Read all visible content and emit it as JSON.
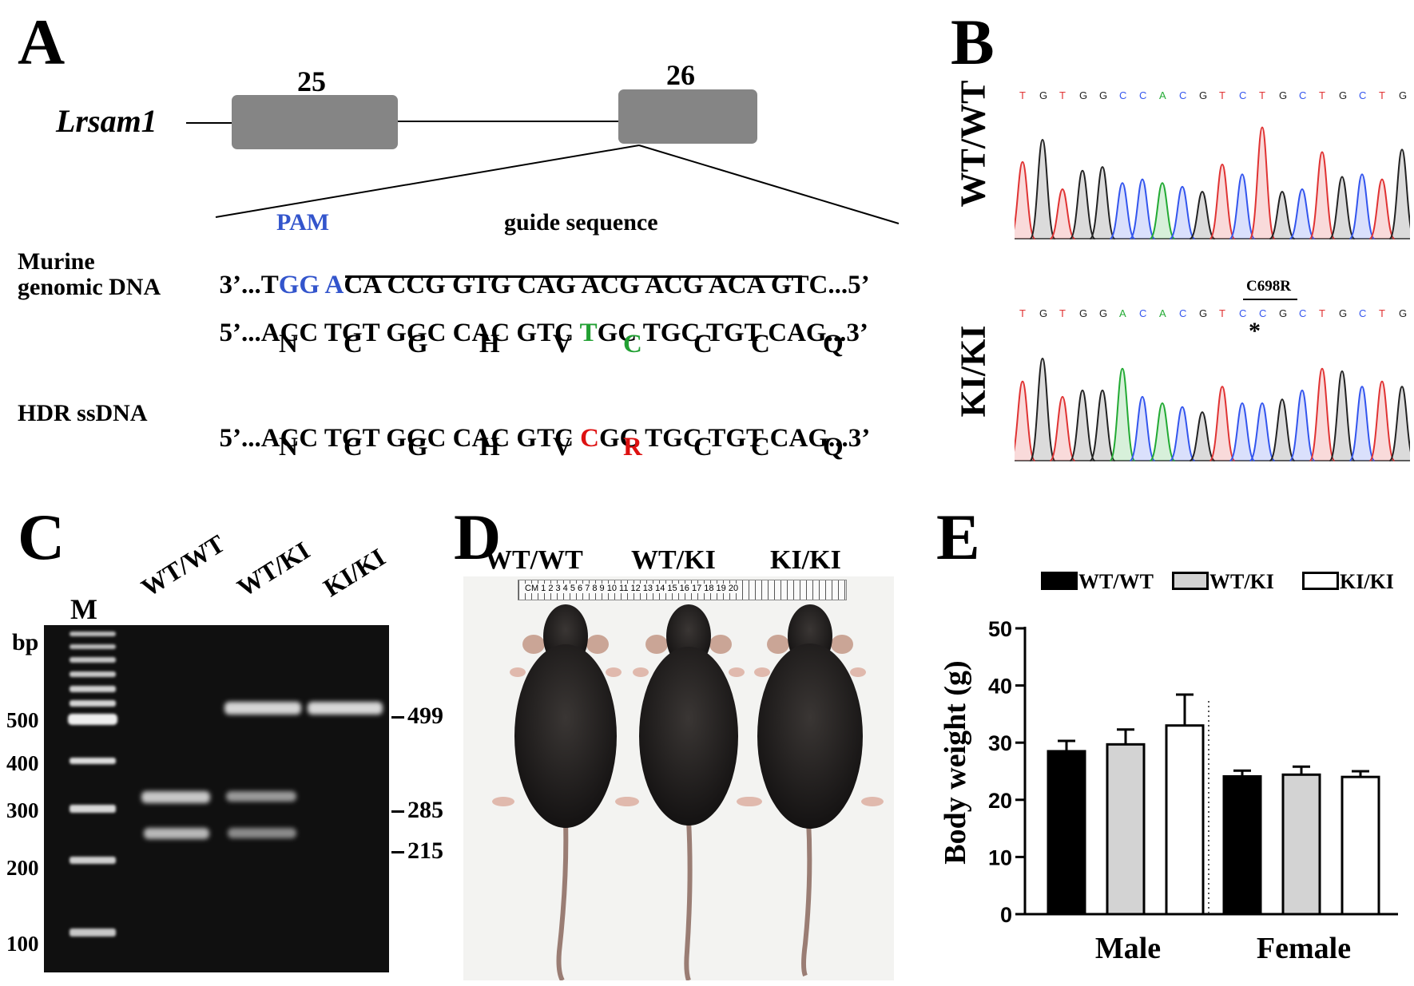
{
  "panels": {
    "a": "A",
    "b": "B",
    "c": "C",
    "d": "D",
    "e": "E"
  },
  "colors": {
    "blue": "#3355cc",
    "green": "#22a033",
    "red": "#dd1111",
    "exon": "#858585",
    "bar_gray": "#d3d3d3"
  },
  "panel_a": {
    "gene": "Lrsam1",
    "exon_left": "25",
    "exon_right": "26",
    "pam": "PAM",
    "guide_label": "guide sequence",
    "murine_label_line1": "Murine",
    "murine_label_line2": "genomic DNA",
    "hdr_label": "HDR ssDNA",
    "rev_strand": {
      "prefix": "3’...T",
      "pam_gg": "GG",
      "space": " ",
      "pam_a": "A",
      "rest": "CA CCG GTG CAG ACG ACG ACA GTC...5’"
    },
    "fwd_strand": {
      "before": "5’...ACC TGT GGC CAC GTC ",
      "mut": "T",
      "after": "GC TGC TGT CAG...3’"
    },
    "fwd_aa": [
      "N",
      "C",
      "G",
      "H",
      "V",
      "C",
      "C",
      "C",
      "Q"
    ],
    "hdr_strand": {
      "before": "5’...ACC TGT GGC CAC GTC ",
      "mut": "C",
      "after": "GC TGC TGT CAG...3’"
    },
    "hdr_aa": [
      "N",
      "C",
      "G",
      "H",
      "V",
      "R",
      "C",
      "C",
      "Q"
    ]
  },
  "panel_b": {
    "wt_label": "WT/WT",
    "ki_label": "KI/KI",
    "wt_seq": [
      "T",
      "G",
      "T",
      "G",
      "G",
      "C",
      "C",
      "A",
      "C",
      "G",
      "T",
      "C",
      "T",
      "G",
      "C",
      "T",
      "G",
      "C",
      "T",
      "G"
    ],
    "ki_seq": [
      "T",
      "G",
      "T",
      "G",
      "G",
      "A",
      "C",
      "A",
      "C",
      "G",
      "T",
      "C",
      "C",
      "G",
      "C",
      "T",
      "G",
      "C",
      "T",
      "G"
    ],
    "mutation": "C698R",
    "asterisk": "*"
  },
  "panel_c": {
    "marker": "M",
    "bp": "bp",
    "lanes": [
      "WT/WT",
      "WT/KI",
      "KI/KI"
    ],
    "ladder": [
      "500",
      "400",
      "300",
      "200",
      "100"
    ],
    "sizes": [
      "499",
      "285",
      "215"
    ]
  },
  "panel_d": {
    "labels": [
      "WT/WT",
      "WT/KI",
      "KI/KI"
    ],
    "ruler_text": "CM 1 2 3 4 5 6 7 8 9 10 11 12 13 14 15 16 17 18 19 20"
  },
  "chart_data": {
    "type": "bar",
    "ylabel": "Body weight (g)",
    "xlabel": "",
    "ylim": [
      0,
      50
    ],
    "yticks": [
      "0",
      "10",
      "20",
      "30",
      "40",
      "50"
    ],
    "categories": [
      "Male",
      "Female"
    ],
    "series": [
      {
        "name": "WT/WT",
        "values": [
          28.5,
          24.1
        ],
        "errors": [
          1.8,
          1.0
        ]
      },
      {
        "name": "WT/KI",
        "values": [
          29.7,
          24.4
        ],
        "errors": [
          2.6,
          1.4
        ]
      },
      {
        "name": "KI/KI",
        "values": [
          33.0,
          24.0
        ],
        "errors": [
          5.4,
          1.0
        ]
      }
    ],
    "legend": "top"
  }
}
